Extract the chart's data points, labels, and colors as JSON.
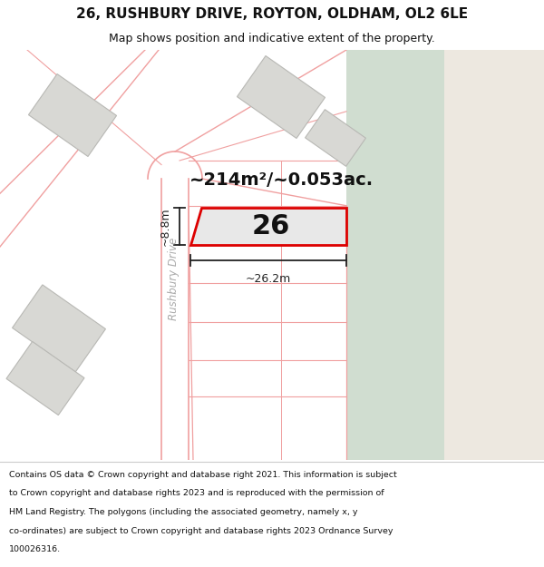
{
  "title_line1": "26, RUSHBURY DRIVE, ROYTON, OLDHAM, OL2 6LE",
  "title_line2": "Map shows position and indicative extent of the property.",
  "footer_lines": [
    "Contains OS data © Crown copyright and database right 2021. This information is subject",
    "to Crown copyright and database rights 2023 and is reproduced with the permission of",
    "HM Land Registry. The polygons (including the associated geometry, namely x, y",
    "co-ordinates) are subject to Crown copyright and database rights 2023 Ordnance Survey",
    "100026316."
  ],
  "area_label": "~214m²/~0.053ac.",
  "number_label": "26",
  "dim_width": "~26.2m",
  "dim_height": "~8.8m",
  "road_label": "Rushbury Drive",
  "bg_map": "#ffffff",
  "bg_green": "#d8e8d8",
  "bg_cream": "#ede8e0",
  "plot_fill": "#e8e8e8",
  "plot_border": "#dd0000",
  "road_color": "#f0a0a0",
  "building_fill": "#d8d8d4",
  "building_edge": "#b8b8b4",
  "dim_color": "#222222",
  "road_label_color": "#aaaaaa",
  "title_fontsize": 11,
  "subtitle_fontsize": 9,
  "area_fontsize": 14,
  "number_fontsize": 22,
  "dim_fontsize": 9,
  "road_label_fontsize": 8.5,
  "footer_fontsize": 6.8
}
